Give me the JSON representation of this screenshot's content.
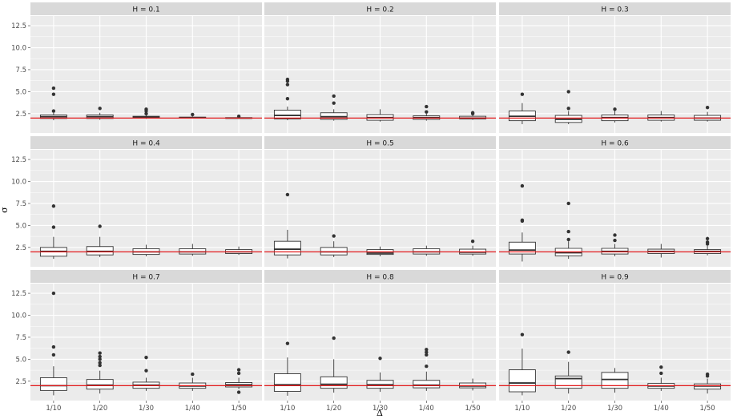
{
  "chart_data": {
    "type": "boxplot",
    "xlabel": "Δ",
    "ylabel": "σ",
    "categories": [
      "1/10",
      "1/20",
      "1/30",
      "1/40",
      "1/50"
    ],
    "y_ticks": [
      2.5,
      5.0,
      7.5,
      10.0,
      12.5
    ],
    "y_tick_labels": [
      "2.5",
      "5.0",
      "7.5",
      "10.0",
      "12.5"
    ],
    "ylim": [
      0.3,
      13.6
    ],
    "reference_line": 2,
    "colors": {
      "reference": "#e31a1c",
      "panel": "#ebebeb",
      "strip": "#d9d9d9",
      "grid": "#ffffff",
      "box_fill": "#ffffff",
      "box_stroke": "#333333",
      "outlier": "#333333"
    },
    "panels": [
      {
        "label": "H = 0.1",
        "boxes": [
          {
            "q1": 1.95,
            "median": 2.15,
            "q3": 2.35,
            "lo": 1.75,
            "hi": 2.6,
            "outliers": [
              2.8,
              4.7,
              5.4
            ]
          },
          {
            "q1": 1.95,
            "median": 2.15,
            "q3": 2.35,
            "lo": 1.8,
            "hi": 2.6,
            "outliers": [
              3.1
            ]
          },
          {
            "q1": 2.0,
            "median": 2.1,
            "q3": 2.2,
            "lo": 1.9,
            "hi": 2.35,
            "outliers": [
              2.5,
              2.8,
              3.0
            ]
          },
          {
            "q1": 2.0,
            "median": 2.05,
            "q3": 2.1,
            "lo": 1.95,
            "hi": 2.2,
            "outliers": [
              2.4
            ]
          },
          {
            "q1": 1.98,
            "median": 2.0,
            "q3": 2.05,
            "lo": 1.95,
            "hi": 2.1,
            "outliers": [
              2.2
            ]
          }
        ]
      },
      {
        "label": "H = 0.2",
        "boxes": [
          {
            "q1": 1.9,
            "median": 2.3,
            "q3": 2.9,
            "lo": 1.75,
            "hi": 3.3,
            "outliers": [
              4.2,
              5.8,
              6.2,
              6.4
            ]
          },
          {
            "q1": 1.85,
            "median": 2.15,
            "q3": 2.6,
            "lo": 1.7,
            "hi": 3.0,
            "outliers": [
              3.7,
              4.5
            ]
          },
          {
            "q1": 1.75,
            "median": 2.05,
            "q3": 2.4,
            "lo": 1.6,
            "hi": 3.0,
            "outliers": []
          },
          {
            "q1": 1.85,
            "median": 2.05,
            "q3": 2.25,
            "lo": 1.7,
            "hi": 2.5,
            "outliers": [
              2.7,
              3.3
            ]
          },
          {
            "q1": 1.9,
            "median": 2.0,
            "q3": 2.2,
            "lo": 1.8,
            "hi": 2.4,
            "outliers": [
              2.5,
              2.6
            ]
          }
        ]
      },
      {
        "label": "H = 0.3",
        "boxes": [
          {
            "q1": 1.7,
            "median": 2.2,
            "q3": 2.8,
            "lo": 1.3,
            "hi": 3.7,
            "outliers": [
              4.7
            ]
          },
          {
            "q1": 1.5,
            "median": 1.85,
            "q3": 2.3,
            "lo": 1.3,
            "hi": 2.8,
            "outliers": [
              3.1,
              5.0
            ]
          },
          {
            "q1": 1.7,
            "median": 2.05,
            "q3": 2.35,
            "lo": 1.5,
            "hi": 2.8,
            "outliers": [
              3.0
            ]
          },
          {
            "q1": 1.75,
            "median": 2.05,
            "q3": 2.35,
            "lo": 1.6,
            "hi": 2.8,
            "outliers": []
          },
          {
            "q1": 1.75,
            "median": 2.0,
            "q3": 2.3,
            "lo": 1.6,
            "hi": 2.7,
            "outliers": [
              3.2
            ]
          }
        ]
      },
      {
        "label": "H = 0.4",
        "boxes": [
          {
            "q1": 1.5,
            "median": 2.05,
            "q3": 2.5,
            "lo": 1.2,
            "hi": 3.7,
            "outliers": [
              4.8,
              7.2
            ]
          },
          {
            "q1": 1.65,
            "median": 2.05,
            "q3": 2.6,
            "lo": 1.4,
            "hi": 3.7,
            "outliers": [
              4.9
            ]
          },
          {
            "q1": 1.7,
            "median": 2.0,
            "q3": 2.35,
            "lo": 1.5,
            "hi": 2.8,
            "outliers": []
          },
          {
            "q1": 1.75,
            "median": 2.0,
            "q3": 2.35,
            "lo": 1.55,
            "hi": 2.9,
            "outliers": []
          },
          {
            "q1": 1.8,
            "median": 2.0,
            "q3": 2.25,
            "lo": 1.65,
            "hi": 2.6,
            "outliers": []
          }
        ]
      },
      {
        "label": "H = 0.5",
        "boxes": [
          {
            "q1": 1.65,
            "median": 2.3,
            "q3": 3.2,
            "lo": 1.25,
            "hi": 4.5,
            "outliers": [
              8.5
            ]
          },
          {
            "q1": 1.65,
            "median": 2.0,
            "q3": 2.5,
            "lo": 1.4,
            "hi": 3.2,
            "outliers": [
              3.8
            ]
          },
          {
            "q1": 1.7,
            "median": 1.85,
            "q3": 2.25,
            "lo": 1.5,
            "hi": 2.6,
            "outliers": []
          },
          {
            "q1": 1.75,
            "median": 2.0,
            "q3": 2.35,
            "lo": 1.55,
            "hi": 2.7,
            "outliers": []
          },
          {
            "q1": 1.75,
            "median": 1.95,
            "q3": 2.3,
            "lo": 1.55,
            "hi": 2.7,
            "outliers": [
              3.2
            ]
          }
        ]
      },
      {
        "label": "H = 0.6",
        "boxes": [
          {
            "q1": 1.75,
            "median": 2.2,
            "q3": 3.1,
            "lo": 0.9,
            "hi": 4.2,
            "outliers": [
              5.5,
              5.6,
              9.5
            ]
          },
          {
            "q1": 1.55,
            "median": 1.9,
            "q3": 2.4,
            "lo": 1.2,
            "hi": 3.2,
            "outliers": [
              3.4,
              4.3,
              7.5
            ]
          },
          {
            "q1": 1.75,
            "median": 2.05,
            "q3": 2.4,
            "lo": 1.5,
            "hi": 2.9,
            "outliers": [
              3.3,
              3.9
            ]
          },
          {
            "q1": 1.8,
            "median": 2.05,
            "q3": 2.3,
            "lo": 1.35,
            "hi": 2.9,
            "outliers": []
          },
          {
            "q1": 1.8,
            "median": 2.05,
            "q3": 2.25,
            "lo": 1.6,
            "hi": 2.7,
            "outliers": [
              2.9,
              3.1,
              3.5
            ]
          }
        ]
      },
      {
        "label": "H = 0.7",
        "boxes": [
          {
            "q1": 1.45,
            "median": 2.0,
            "q3": 2.9,
            "lo": 0.9,
            "hi": 4.2,
            "outliers": [
              5.5,
              6.4,
              12.5
            ]
          },
          {
            "q1": 1.6,
            "median": 2.05,
            "q3": 2.7,
            "lo": 1.1,
            "hi": 3.7,
            "outliers": [
              4.3,
              4.6,
              5.0,
              5.3,
              5.7
            ]
          },
          {
            "q1": 1.7,
            "median": 2.05,
            "q3": 2.4,
            "lo": 1.4,
            "hi": 2.9,
            "outliers": [
              3.7,
              5.2
            ]
          },
          {
            "q1": 1.7,
            "median": 1.95,
            "q3": 2.3,
            "lo": 1.4,
            "hi": 2.9,
            "outliers": [
              3.3
            ]
          },
          {
            "q1": 1.85,
            "median": 2.1,
            "q3": 2.35,
            "lo": 1.6,
            "hi": 2.9,
            "outliers": [
              1.25,
              3.4,
              3.8
            ]
          }
        ]
      },
      {
        "label": "H = 0.8",
        "boxes": [
          {
            "q1": 1.35,
            "median": 2.1,
            "q3": 3.35,
            "lo": 0.85,
            "hi": 5.2,
            "outliers": [
              6.8
            ]
          },
          {
            "q1": 1.7,
            "median": 2.15,
            "q3": 3.0,
            "lo": 1.2,
            "hi": 5.0,
            "outliers": [
              7.4
            ]
          },
          {
            "q1": 1.7,
            "median": 2.1,
            "q3": 2.6,
            "lo": 1.3,
            "hi": 3.5,
            "outliers": [
              5.1
            ]
          },
          {
            "q1": 1.75,
            "median": 2.05,
            "q3": 2.6,
            "lo": 1.4,
            "hi": 3.6,
            "outliers": [
              4.2,
              5.5,
              5.8,
              6.1
            ]
          },
          {
            "q1": 1.75,
            "median": 1.95,
            "q3": 2.3,
            "lo": 1.45,
            "hi": 2.8,
            "outliers": []
          }
        ]
      },
      {
        "label": "H = 0.9",
        "boxes": [
          {
            "q1": 1.3,
            "median": 2.3,
            "q3": 3.8,
            "lo": 0.9,
            "hi": 6.2,
            "outliers": [
              7.8
            ]
          },
          {
            "q1": 1.7,
            "median": 2.8,
            "q3": 3.1,
            "lo": 1.1,
            "hi": 4.7,
            "outliers": [
              5.8
            ]
          },
          {
            "q1": 1.7,
            "median": 2.7,
            "q3": 3.5,
            "lo": 1.2,
            "hi": 4.0,
            "outliers": []
          },
          {
            "q1": 1.7,
            "median": 1.95,
            "q3": 2.25,
            "lo": 1.4,
            "hi": 2.9,
            "outliers": [
              3.4,
              4.1
            ]
          },
          {
            "q1": 1.6,
            "median": 1.95,
            "q3": 2.2,
            "lo": 1.1,
            "hi": 2.8,
            "outliers": [
              3.1,
              3.3
            ]
          }
        ]
      }
    ]
  }
}
